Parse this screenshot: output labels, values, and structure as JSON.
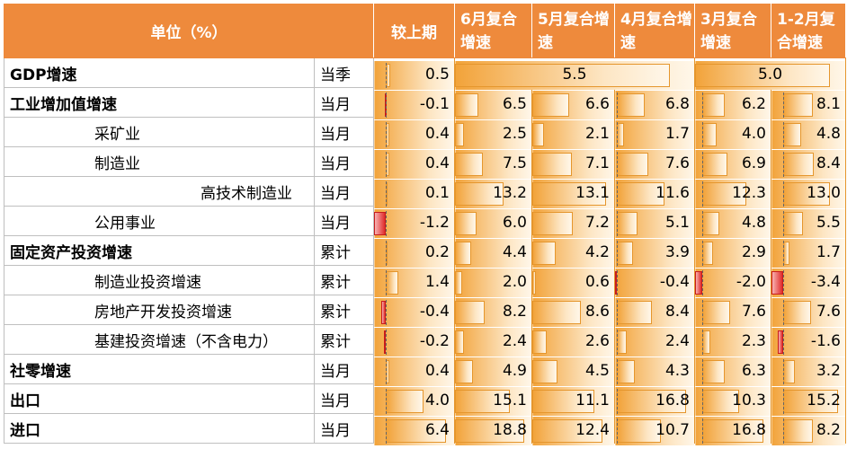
{
  "headers": {
    "unit": "单位（%）",
    "prev": "较上期",
    "jun": "6月复合增速",
    "may": "5月复合增速",
    "apr": "4月复合增速",
    "mar": "3月复合增速",
    "jan_feb": "1-2月复合增速"
  },
  "rows": [
    {
      "name": "GDP增速",
      "unit": "当季",
      "prev": "0.5",
      "jun_may": "5.5",
      "mar_janfeb": "5.0"
    },
    {
      "name": "工业增加值增速",
      "unit": "当月",
      "prev": "-0.1",
      "jun": "6.5",
      "may": "6.6",
      "apr": "6.8",
      "mar": "6.2",
      "jan_feb": "8.1"
    },
    {
      "name": "采矿业",
      "unit": "当月",
      "prev": "0.4",
      "jun": "2.5",
      "may": "2.1",
      "apr": "1.7",
      "mar": "4.0",
      "jan_feb": "4.8"
    },
    {
      "name": "制造业",
      "unit": "当月",
      "prev": "0.4",
      "jun": "7.5",
      "may": "7.1",
      "apr": "7.6",
      "mar": "6.9",
      "jan_feb": "8.4"
    },
    {
      "name": "高技术制造业",
      "unit": "当月",
      "prev": "0.1",
      "jun": "13.2",
      "may": "13.1",
      "apr": "11.6",
      "mar": "12.3",
      "jan_feb": "13.0"
    },
    {
      "name": "公用事业",
      "unit": "当月",
      "prev": "-1.2",
      "jun": "6.0",
      "may": "7.2",
      "apr": "5.1",
      "mar": "4.8",
      "jan_feb": "5.5"
    },
    {
      "name": "固定资产投资增速",
      "unit": "累计",
      "prev": "0.2",
      "jun": "4.4",
      "may": "4.2",
      "apr": "3.9",
      "mar": "2.9",
      "jan_feb": "1.7"
    },
    {
      "name": "制造业投资增速",
      "unit": "累计",
      "prev": "1.4",
      "jun": "2.0",
      "may": "0.6",
      "apr": "-0.4",
      "mar": "-2.0",
      "jan_feb": "-3.4"
    },
    {
      "name": "房地产开发投资增速",
      "unit": "累计",
      "prev": "-0.4",
      "jun": "8.2",
      "may": "8.6",
      "apr": "8.4",
      "mar": "7.6",
      "jan_feb": "7.6"
    },
    {
      "name": "基建投资增速（不含电力）",
      "unit": "累计",
      "prev": "-0.2",
      "jun": "2.4",
      "may": "2.6",
      "apr": "2.4",
      "mar": "2.3",
      "jan_feb": "-1.6"
    },
    {
      "name": "社零增速",
      "unit": "当月",
      "prev": "0.4",
      "jun": "4.9",
      "may": "4.5",
      "apr": "4.3",
      "mar": "6.3",
      "jan_feb": "3.2"
    },
    {
      "name": "出口",
      "unit": "当月",
      "prev": "4.0",
      "jun": "15.1",
      "may": "11.1",
      "apr": "16.8",
      "mar": "10.3",
      "jan_feb": "15.2"
    },
    {
      "name": "进口",
      "unit": "当月",
      "prev": "6.4",
      "jun": "18.8",
      "may": "12.4",
      "apr": "10.7",
      "mar": "16.8",
      "jan_feb": "8.2"
    }
  ],
  "colors": {
    "header_bg": "#ee8a3c",
    "bar_positive": "#f2a33a",
    "bar_negative": "#e02b2b"
  }
}
